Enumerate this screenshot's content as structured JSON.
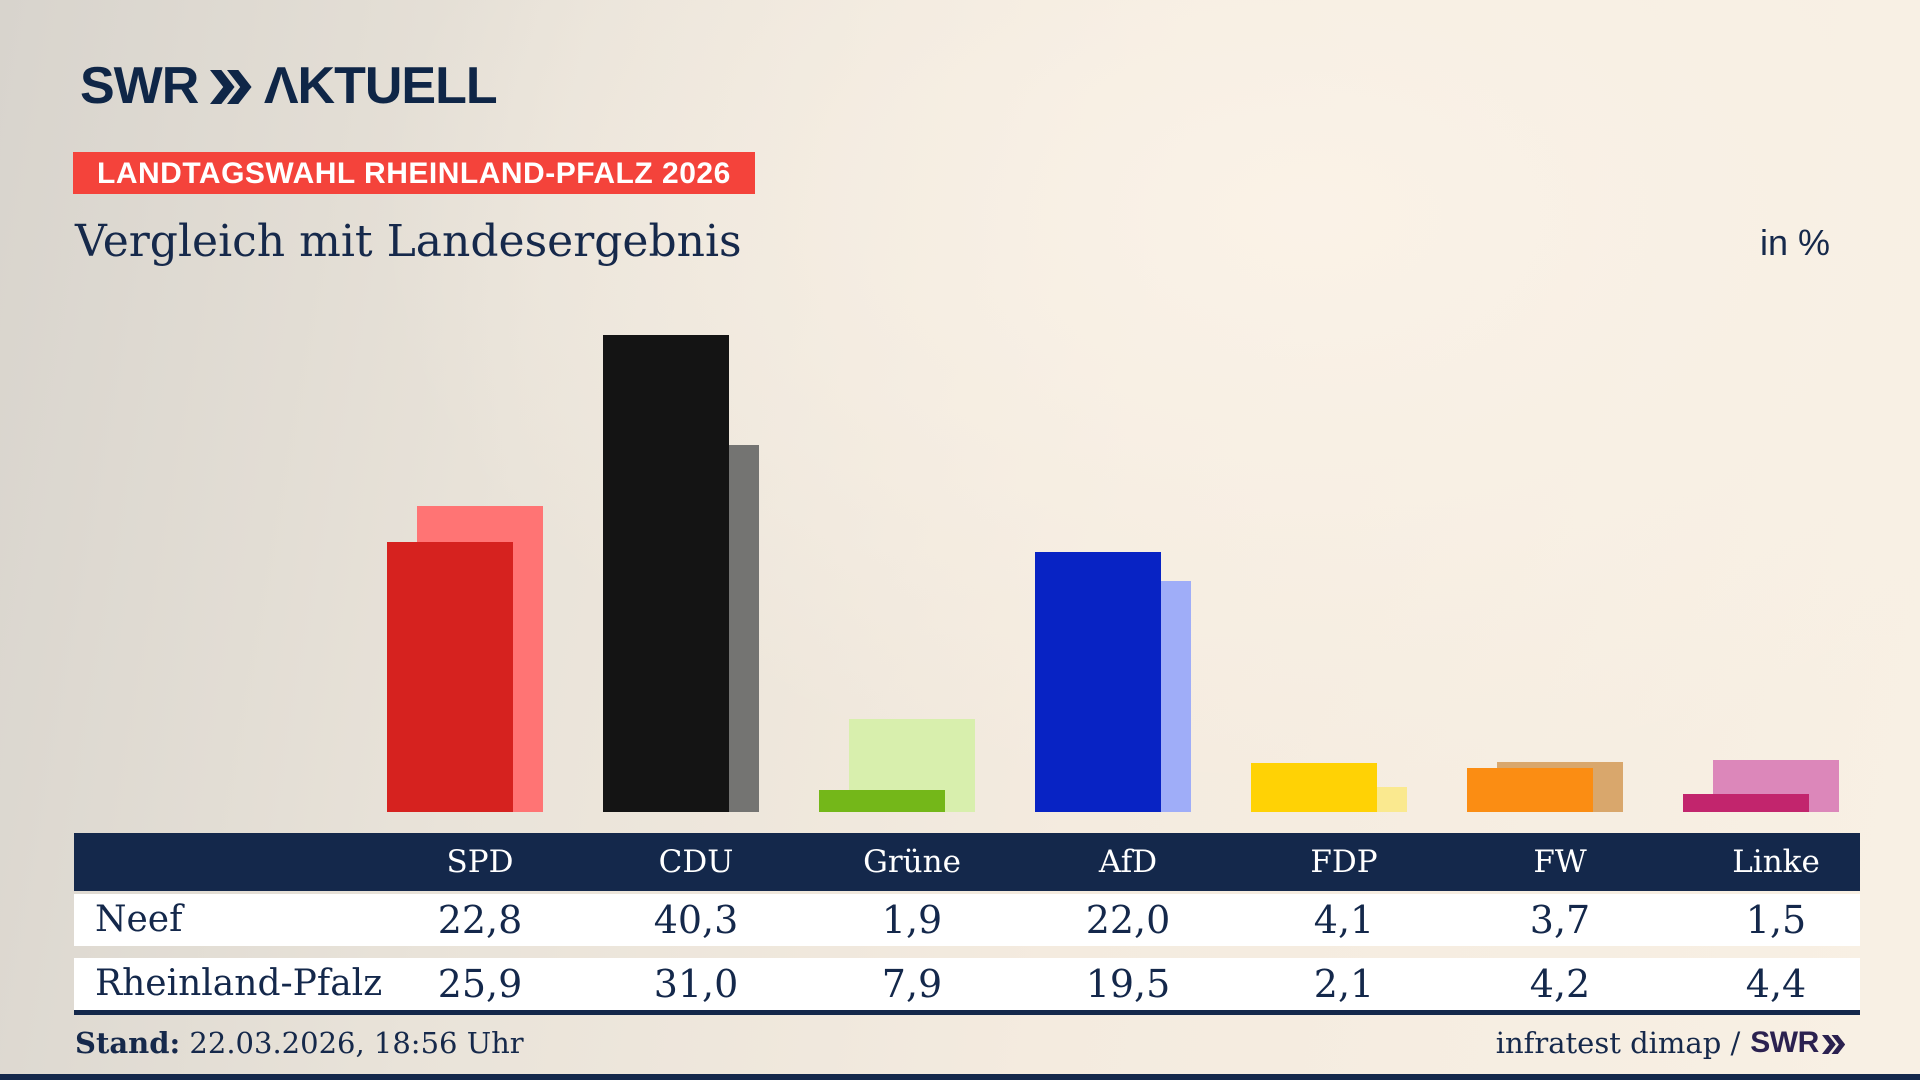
{
  "header": {
    "logo": {
      "brand": "SWR",
      "chevrons_icon": "double-chevron-right",
      "product": "ΛKTUELL"
    },
    "badge_label": "LANDTAGSWAHL RHEINLAND-PFALZ 2026",
    "title": "Vergleich mit Landesergebnis",
    "unit_label": "in %"
  },
  "chart_data": {
    "type": "bar",
    "categories": [
      "SPD",
      "CDU",
      "Grüne",
      "AfD",
      "FDP",
      "FW",
      "Linke"
    ],
    "series": [
      {
        "name": "Neef",
        "values": [
          22.8,
          40.3,
          1.9,
          22.0,
          4.1,
          3.7,
          1.5
        ],
        "colors": [
          "#d6221f",
          "#141414",
          "#74b719",
          "#0823c4",
          "#ffd205",
          "#fb8d13",
          "#c2256d"
        ],
        "role": "front"
      },
      {
        "name": "Rheinland-Pfalz",
        "values": [
          25.9,
          31.0,
          7.9,
          19.5,
          2.1,
          4.2,
          4.4
        ],
        "colors": [
          "#ff7474",
          "#747472",
          "#d8efad",
          "#9fadf8",
          "#fae98f",
          "#d9a76c",
          "#dc87ba"
        ],
        "role": "back"
      }
    ],
    "ylim": [
      0,
      45
    ],
    "grid": false,
    "unit": "%",
    "legend_position": "table-below-chart",
    "title": "Vergleich mit Landesergebnis"
  },
  "table": {
    "columns": [
      "SPD",
      "CDU",
      "Grüne",
      "AfD",
      "FDP",
      "FW",
      "Linke"
    ],
    "rows": [
      {
        "label": "Neef",
        "values": [
          "22,8",
          "40,3",
          "1,9",
          "22,0",
          "4,1",
          "3,7",
          "1,5"
        ]
      },
      {
        "label": "Rheinland-Pfalz",
        "values": [
          "25,9",
          "31,0",
          "7,9",
          "19,5",
          "2,1",
          "4,2",
          "4,4"
        ]
      }
    ]
  },
  "footer": {
    "stand_label": "Stand:",
    "stand_value": "22.03.2026, 18:56 Uhr",
    "source_text": "infratest dimap /",
    "source_brand": "SWR",
    "source_brand_icon": "double-chevron-right"
  },
  "colors": {
    "navy": "#14284b",
    "badge_red": "#f4433b",
    "table_row_bg": "#ffffff",
    "brand_indigo": "#2b2150",
    "background_cream": "#f8f0e4",
    "background_gray": "#d8d4cd"
  }
}
